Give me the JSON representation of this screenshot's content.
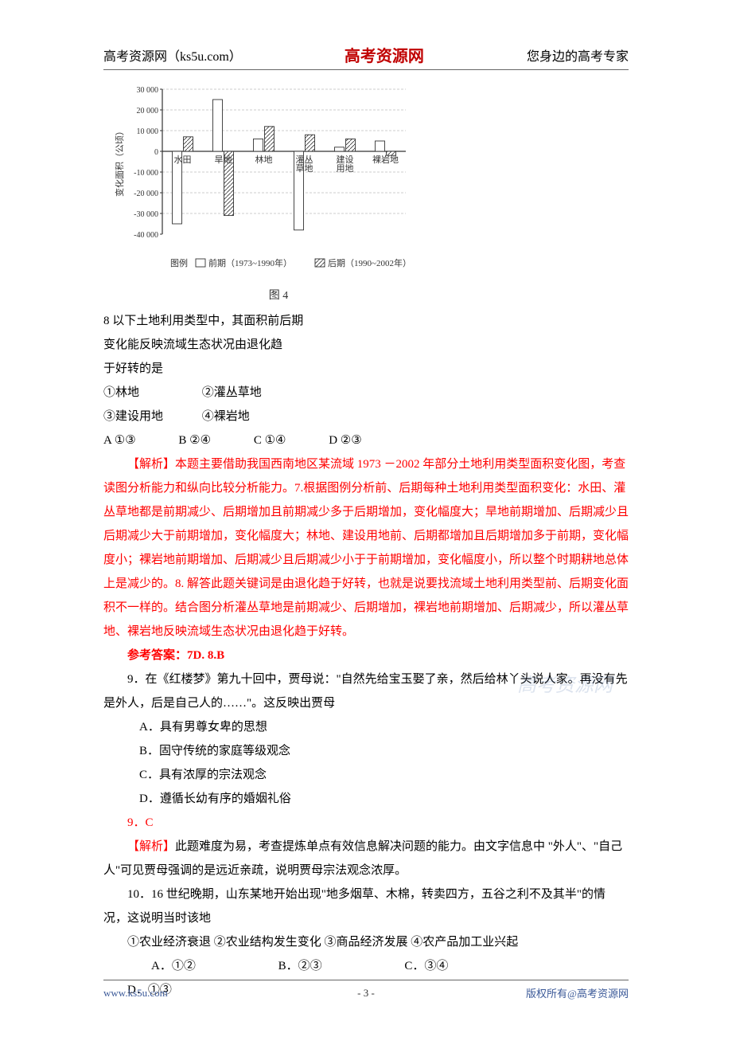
{
  "header": {
    "left": "高考资源网（ks5u.com）",
    "center": "高考资源网",
    "right": "您身边的高考专家"
  },
  "chart": {
    "type": "bar",
    "y_label": "变化面积（公顷）",
    "y_ticks": [
      -40000,
      -30000,
      -20000,
      -10000,
      0,
      10000,
      20000,
      30000
    ],
    "y_tick_labels": [
      "-40 000",
      "-30 000",
      "-20 000",
      "-10 000",
      "0",
      "10 000",
      "20 000",
      "30 000"
    ],
    "categories": [
      "水田",
      "旱地",
      "林地",
      "灌丛\n草地",
      "建设\n用地",
      "裸岩地"
    ],
    "series": [
      {
        "name": "前期（1973~1990年）",
        "pattern": "blank",
        "values": [
          -35000,
          25000,
          6000,
          -38000,
          2000,
          5000
        ]
      },
      {
        "name": "后期（1990~2002年）",
        "pattern": "hatch",
        "values": [
          7000,
          -31000,
          12000,
          8000,
          6000,
          -2000
        ]
      }
    ],
    "legend_prefix": "图例",
    "caption": "图 4",
    "grid_color": "#999999",
    "axis_color": "#333333",
    "bar_stroke": "#333333"
  },
  "q8": {
    "prompt_line1": "8  以下土地利用类型中，其面积前后期",
    "prompt_line2": "变化能反映流域生态状况由退化趋",
    "prompt_line3": "于好转的是",
    "items_row1_a": "①林地",
    "items_row1_b": "②灌丛草地",
    "items_row2_a": "③建设用地",
    "items_row2_b": "④裸岩地",
    "opts": {
      "a": "A  ①③",
      "b": "B  ②④",
      "c": "C  ①④",
      "d": "D  ②③"
    }
  },
  "analysis78": {
    "label": "【解析】",
    "text": "本题主要借助我国西南地区某流域 1973 －2002 年部分土地利用类型面积变化图，考查读图分析能力和纵向比较分析能力。7.根据图例分析前、后期每种土地利用类型面积变化：水田、灌丛草地都是前期减少、后期增加且前期减少多于后期增加，变化幅度大；旱地前期增加、后期减少且后期减少大于前期增加，变化幅度大；林地、建设用地前、后期都增加且后期增加多于前期，变化幅度小；裸岩地前期增加、后期减少且后期减少小于于前期增加，变化幅度小，所以整个时期耕地总体上是减少的。8. 解答此题关键词是由退化趋于好转，也就是说要找流域土地利用类型前、后期变化面积不一样的。结合图分析灌丛草地是前期减少、后期增加，裸岩地前期增加、后期减少，所以灌丛草地、裸岩地反映流域生态状况由退化趋于好转。",
    "answer": "参考答案：7D.   8.B"
  },
  "q9": {
    "prompt": "9．在《红楼梦》第九十回中，贾母说：\"自然先给宝玉娶了亲，然后给林丫头说人家。再没有先是外人，后是自己人的……\"。这反映出贾母",
    "a": "A．具有男尊女卑的思想",
    "b": "B．固守传统的家庭等级观念",
    "c": "C．具有浓厚的宗法观念",
    "d": "D．遵循长幼有序的婚姻礼俗",
    "answer": "9．C",
    "analysis_label": "【解析】",
    "analysis_text": "此题难度为易，考查提炼单点有效信息解决问题的能力。由文字信息中  \"外人\"、\"自己人\"可见贾母强调的是远近亲疏，说明贾母宗法观念浓厚。"
  },
  "q10": {
    "prompt": "10．16 世纪晚期，山东某地开始出现\"地多烟草、木棉，转卖四方，五谷之利不及其半\"的情况，这说明当时该地",
    "items": "①农业经济衰退    ②农业结构发生变化    ③商品经济发展    ④农产品加工业兴起",
    "opts": {
      "a": "A．①②",
      "b": "B．②③",
      "c": "C．③④",
      "d": "D．①③"
    }
  },
  "watermark": "高考资源网",
  "footer": {
    "left": "www.ks5u.com",
    "center": "- 3 -",
    "right": "版权所有@高考资源网"
  }
}
